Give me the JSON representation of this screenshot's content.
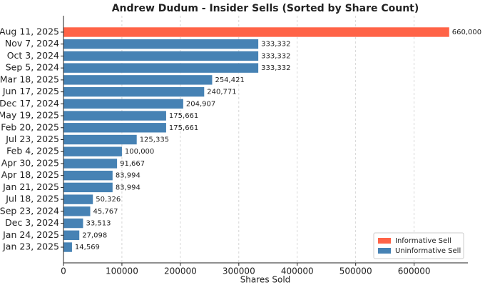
{
  "chart_data": {
    "type": "barh",
    "title": "Andrew Dudum - Insider Sells (Sorted by Share Count)",
    "x_label": "Shares Sold",
    "categories": [
      "Aug 11, 2025",
      "Nov 7, 2024",
      "Oct 3, 2024",
      "Sep 5, 2024",
      "Mar 18, 2025",
      "Jun 17, 2025",
      "Dec 17, 2024",
      "May 19, 2025",
      "Feb 20, 2025",
      "Jul 23, 2025",
      "Feb 4, 2025",
      "Apr 30, 2025",
      "Apr 18, 2025",
      "Jan 21, 2025",
      "Jul 18, 2025",
      "Sep 23, 2024",
      "Dec 3, 2024",
      "Jan 24, 2025",
      "Jan 23, 2025"
    ],
    "series": [
      {
        "name": "Informative Sell",
        "color": "#ff6347",
        "values": [
          660000,
          null,
          null,
          null,
          null,
          null,
          null,
          null,
          null,
          null,
          null,
          null,
          null,
          null,
          null,
          null,
          null,
          null,
          null
        ],
        "value_labels": [
          "660,000",
          null,
          null,
          null,
          null,
          null,
          null,
          null,
          null,
          null,
          null,
          null,
          null,
          null,
          null,
          null,
          null,
          null,
          null
        ]
      },
      {
        "name": "Uninformative Sell",
        "color": "#4682b4",
        "values": [
          null,
          333332,
          333332,
          333332,
          254421,
          240771,
          204907,
          175661,
          175661,
          125335,
          100000,
          91667,
          83994,
          83994,
          50326,
          45767,
          33513,
          27098,
          14569
        ],
        "value_labels": [
          null,
          "333,332",
          "333,332",
          "333,332",
          "254,421",
          "240,771",
          "204,907",
          "175,661",
          "175,661",
          "125,335",
          "100,000",
          "91,667",
          "83,994",
          "83,994",
          "50,326",
          "45,767",
          "33,513",
          "27,098",
          "14,569"
        ]
      }
    ],
    "xlim": [
      0,
      692000
    ],
    "xticks": [
      0,
      100000,
      200000,
      300000,
      400000,
      500000,
      600000
    ],
    "grid": true,
    "legend": "lower right"
  }
}
